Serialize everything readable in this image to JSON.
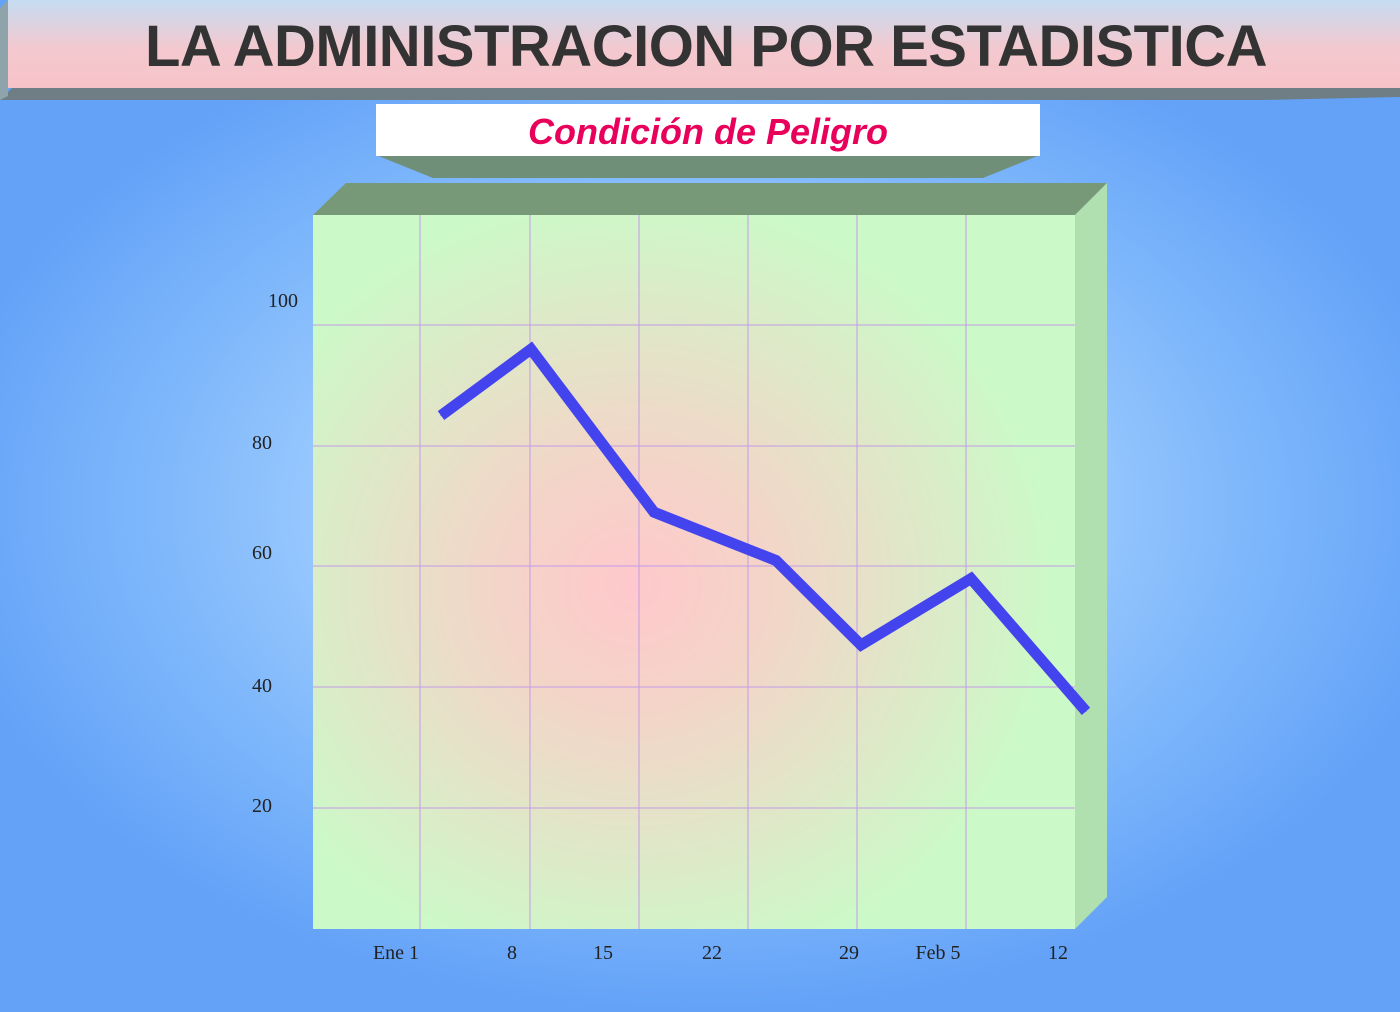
{
  "header": {
    "title": "LA ADMINISTRACION POR ESTADISTICA",
    "subtitle": "Condición de Peligro"
  },
  "colors": {
    "title_text": "#333333",
    "subtitle_text": "#e8005a",
    "line": "#4444ee",
    "plot_background": "#ccf9c8",
    "plot_center_glow": "#ffc8cc",
    "grid": "#c39be8",
    "panel_top": "#779978",
    "panel_side": "#b0e0b0"
  },
  "chart_data": {
    "type": "line",
    "title": "Condición de Peligro",
    "xlabel": "",
    "ylabel": "",
    "x_tick_labels": [
      "Ene 1",
      "8",
      "15",
      "22",
      "29",
      "Feb 5",
      "12"
    ],
    "y_tick_labels": [
      "100",
      "80",
      "60",
      "40",
      "20"
    ],
    "y_tick_values": [
      100,
      80,
      60,
      40,
      20
    ],
    "ylim": [
      0,
      110
    ],
    "grid": true,
    "legend": "none",
    "series": [
      {
        "x": [
          "Ene 1",
          "8",
          "15",
          "22",
          "29",
          "Feb 5",
          "12"
        ],
        "values": [
          85,
          96,
          69,
          61,
          47,
          58,
          36
        ]
      }
    ]
  }
}
